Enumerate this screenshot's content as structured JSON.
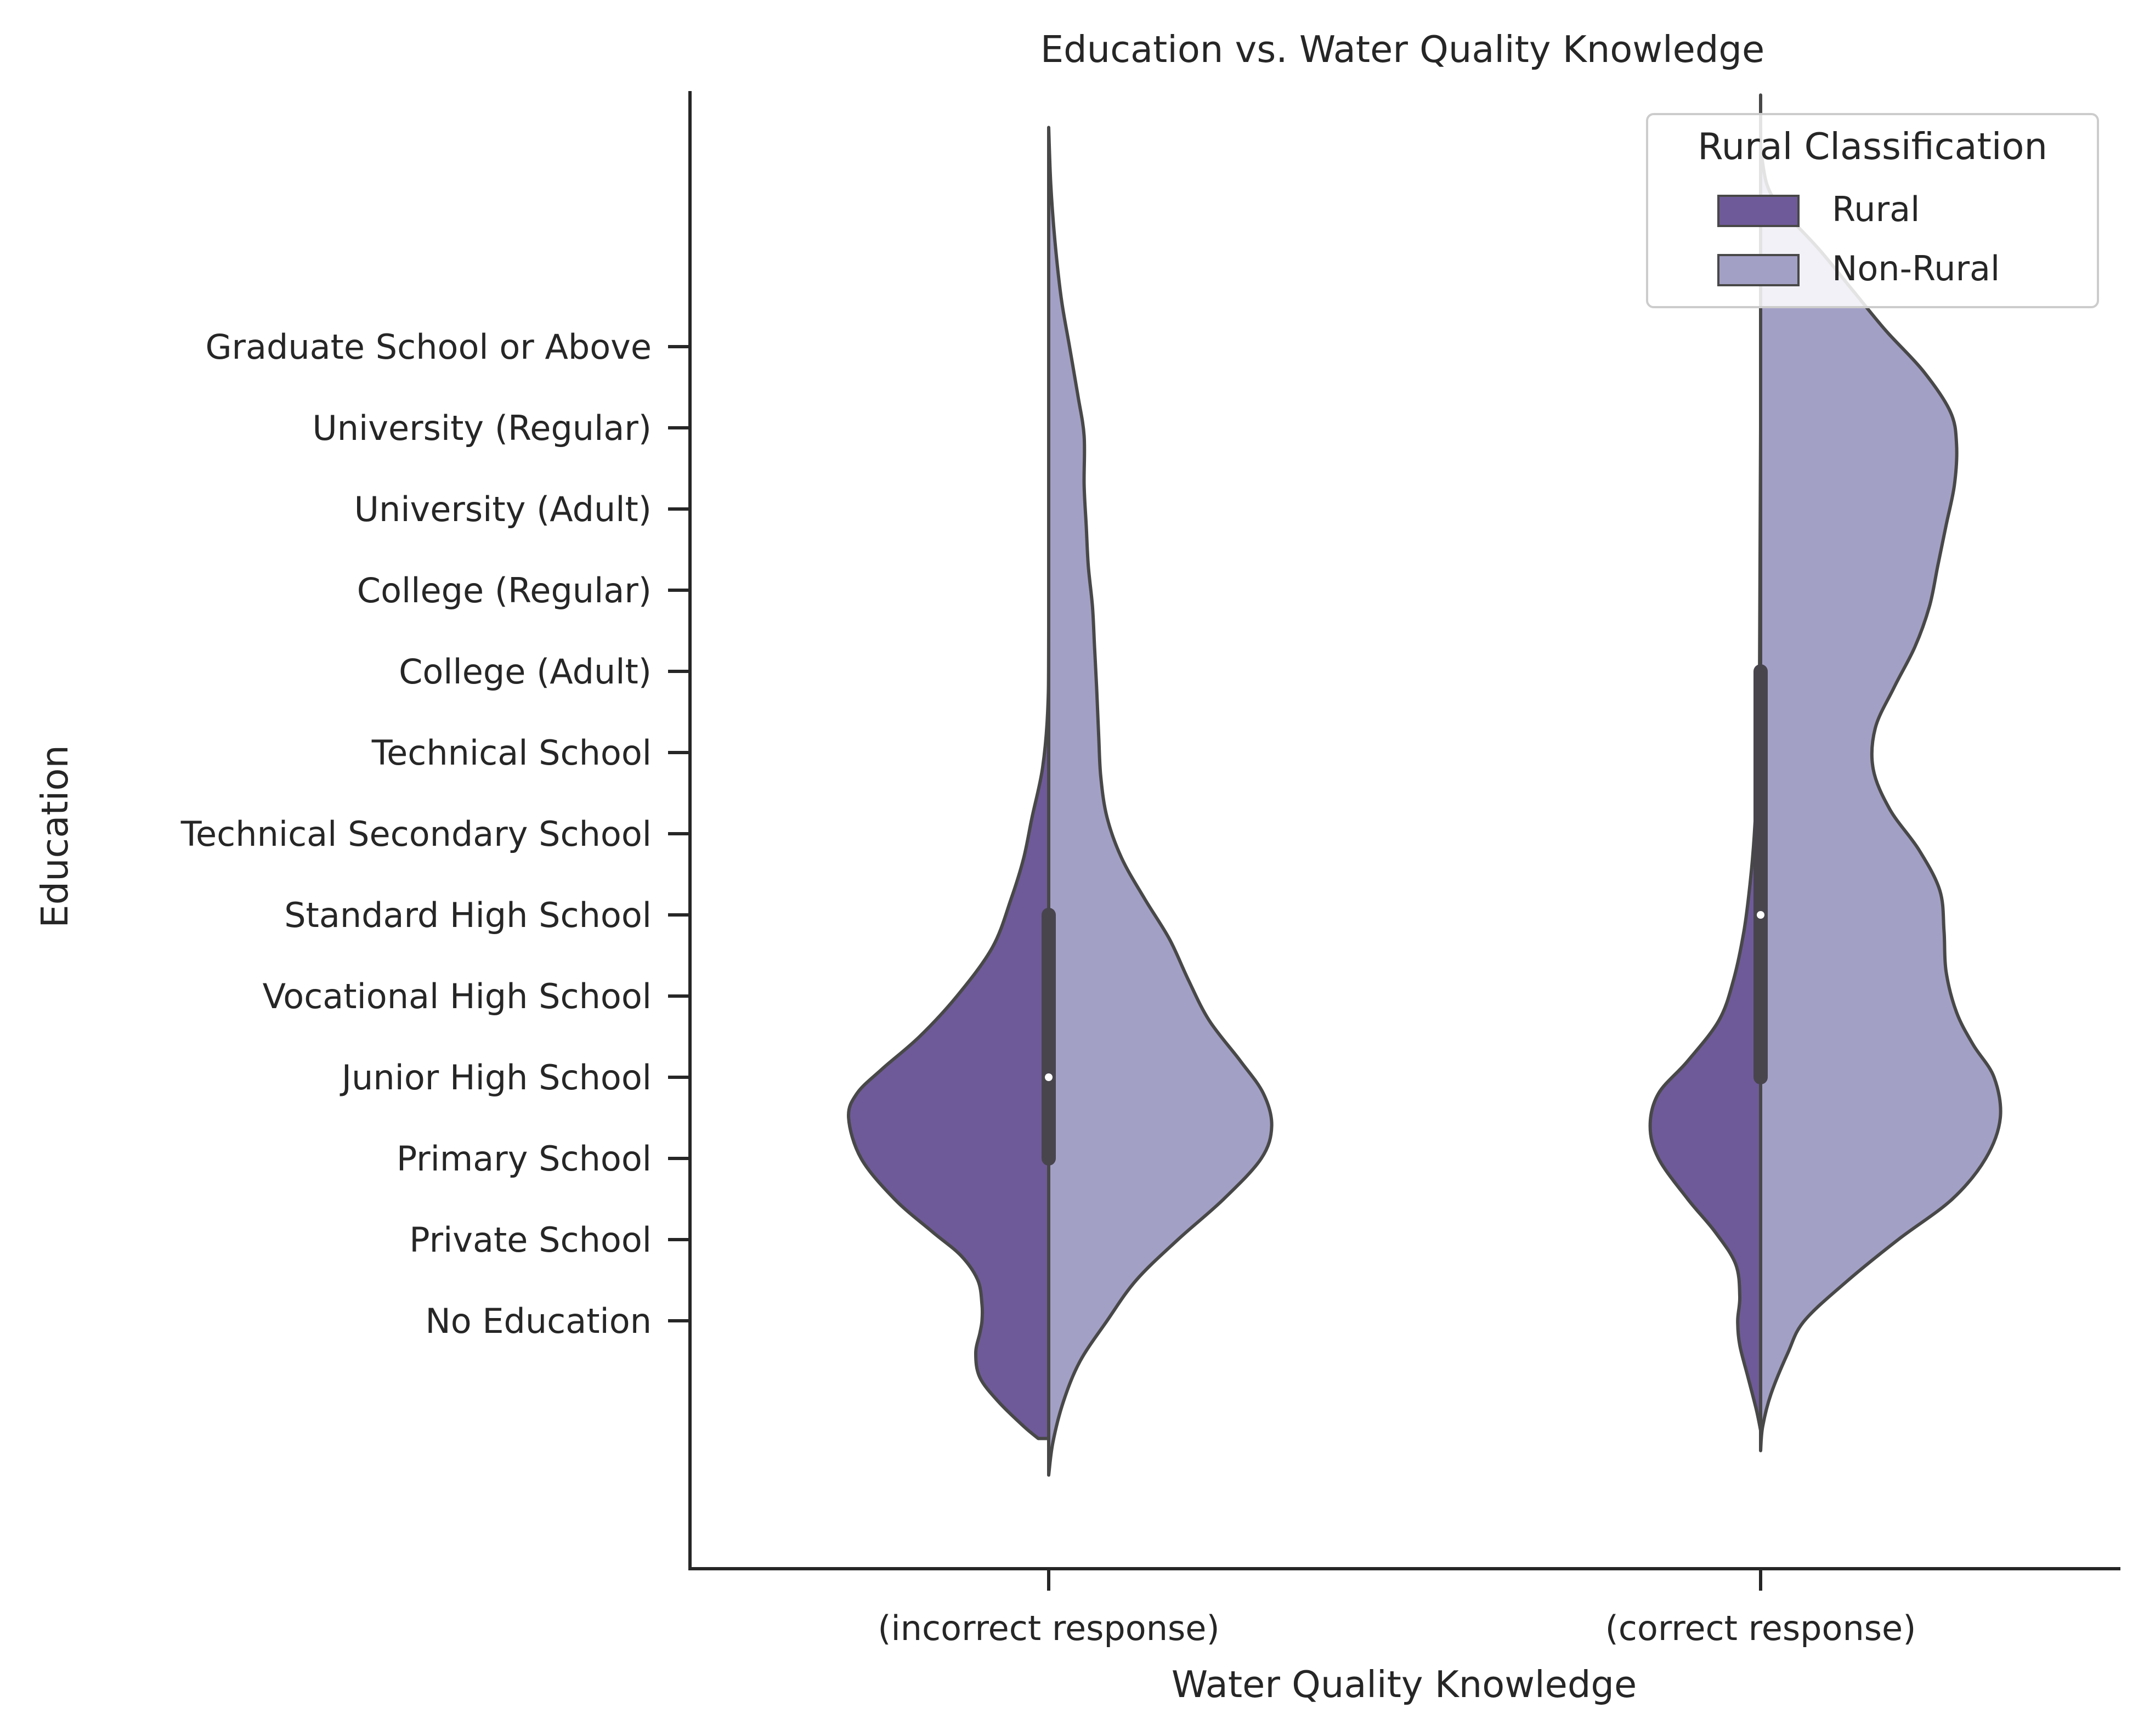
{
  "chart_data": {
    "type": "violin",
    "title": "Education vs. Water Quality Knowledge",
    "xlabel": "Water Quality Knowledge",
    "ylabel": "Education",
    "categories": [
      "(incorrect response)",
      "(correct response)"
    ],
    "y_levels": [
      "No Education",
      "Private School",
      "Primary School",
      "Junior High School",
      "Vocational High School",
      "Standard High School",
      "Technical Secondary School",
      "Technical School",
      "College (Adult)",
      "College (Regular)",
      "University (Adult)",
      "University (Regular)",
      "Graduate School or Above"
    ],
    "ylim": [
      -1.6,
      15.4
    ],
    "legend": {
      "title": "Rural Classification",
      "placement": "top-right"
    },
    "grid": false,
    "split": true,
    "series": [
      {
        "name": "Rural",
        "color": "#6e5a99",
        "side": "left",
        "violins": [
          {
            "category": "(incorrect response)",
            "extent": [
              -1.45,
              11.6
            ],
            "density_profile": [
              [
                -1.45,
                0.05
              ],
              [
                -1.3,
                0.12
              ],
              [
                -1.0,
                0.24
              ],
              [
                -0.7,
                0.33
              ],
              [
                -0.4,
                0.35
              ],
              [
                -0.15,
                0.33
              ],
              [
                0.0,
                0.32
              ],
              [
                0.2,
                0.32
              ],
              [
                0.5,
                0.34
              ],
              [
                0.8,
                0.42
              ],
              [
                1.1,
                0.56
              ],
              [
                1.5,
                0.74
              ],
              [
                2.0,
                0.9
              ],
              [
                2.5,
                0.96
              ],
              [
                2.8,
                0.92
              ],
              [
                3.1,
                0.8
              ],
              [
                3.5,
                0.62
              ],
              [
                4.0,
                0.44
              ],
              [
                4.6,
                0.27
              ],
              [
                5.2,
                0.18
              ],
              [
                5.7,
                0.12
              ],
              [
                6.2,
                0.08
              ],
              [
                6.8,
                0.03
              ],
              [
                7.5,
                0.005
              ],
              [
                8.5,
                0.0
              ],
              [
                11.6,
                0.0
              ]
            ]
          },
          {
            "category": "(correct response)",
            "extent": [
              -1.35,
              15.1
            ],
            "density_profile": [
              [
                -1.35,
                0.0
              ],
              [
                -1.1,
                0.02
              ],
              [
                -0.7,
                0.06
              ],
              [
                -0.3,
                0.1
              ],
              [
                0.0,
                0.11
              ],
              [
                0.3,
                0.1
              ],
              [
                0.7,
                0.12
              ],
              [
                1.1,
                0.22
              ],
              [
                1.5,
                0.35
              ],
              [
                2.0,
                0.49
              ],
              [
                2.4,
                0.53
              ],
              [
                2.8,
                0.49
              ],
              [
                3.2,
                0.35
              ],
              [
                3.7,
                0.2
              ],
              [
                4.2,
                0.13
              ],
              [
                4.8,
                0.08
              ],
              [
                5.4,
                0.05
              ],
              [
                6.0,
                0.03
              ],
              [
                7.0,
                0.01
              ],
              [
                8.0,
                0.005
              ],
              [
                11.0,
                0.0
              ],
              [
                15.1,
                0.0
              ]
            ]
          }
        ]
      },
      {
        "name": "Non-Rural",
        "color": "#a3a0c6",
        "side": "right",
        "violins": [
          {
            "category": "(incorrect response)",
            "extent": [
              -1.9,
              14.7
            ],
            "density_profile": [
              [
                -1.9,
                0.0
              ],
              [
                -1.5,
                0.02
              ],
              [
                -1.0,
                0.07
              ],
              [
                -0.5,
                0.15
              ],
              [
                0.0,
                0.28
              ],
              [
                0.5,
                0.42
              ],
              [
                1.0,
                0.62
              ],
              [
                1.5,
                0.84
              ],
              [
                2.0,
                1.02
              ],
              [
                2.4,
                1.07
              ],
              [
                2.8,
                1.03
              ],
              [
                3.2,
                0.92
              ],
              [
                3.7,
                0.77
              ],
              [
                4.2,
                0.67
              ],
              [
                4.7,
                0.58
              ],
              [
                5.2,
                0.46
              ],
              [
                5.7,
                0.35
              ],
              [
                6.2,
                0.28
              ],
              [
                6.7,
                0.25
              ],
              [
                7.2,
                0.24
              ],
              [
                7.8,
                0.23
              ],
              [
                8.3,
                0.22
              ],
              [
                8.8,
                0.21
              ],
              [
                9.3,
                0.19
              ],
              [
                9.8,
                0.18
              ],
              [
                10.3,
                0.17
              ],
              [
                10.9,
                0.17
              ],
              [
                11.4,
                0.14
              ],
              [
                12.0,
                0.1
              ],
              [
                12.6,
                0.06
              ],
              [
                13.3,
                0.03
              ],
              [
                14.0,
                0.01
              ],
              [
                14.7,
                0.0
              ]
            ]
          },
          {
            "category": "(correct response)",
            "extent": [
              -1.6,
              14.45
            ],
            "density_profile": [
              [
                -1.6,
                0.0
              ],
              [
                -1.3,
                0.01
              ],
              [
                -0.9,
                0.05
              ],
              [
                -0.4,
                0.13
              ],
              [
                0.0,
                0.21
              ],
              [
                0.5,
                0.42
              ],
              [
                1.0,
                0.66
              ],
              [
                1.5,
                0.92
              ],
              [
                2.0,
                1.08
              ],
              [
                2.5,
                1.15
              ],
              [
                3.0,
                1.12
              ],
              [
                3.4,
                1.02
              ],
              [
                3.8,
                0.94
              ],
              [
                4.3,
                0.89
              ],
              [
                4.8,
                0.88
              ],
              [
                5.3,
                0.86
              ],
              [
                5.8,
                0.76
              ],
              [
                6.3,
                0.62
              ],
              [
                6.8,
                0.54
              ],
              [
                7.3,
                0.55
              ],
              [
                7.8,
                0.64
              ],
              [
                8.3,
                0.74
              ],
              [
                8.8,
                0.81
              ],
              [
                9.3,
                0.85
              ],
              [
                9.8,
                0.89
              ],
              [
                10.3,
                0.93
              ],
              [
                10.8,
                0.94
              ],
              [
                11.2,
                0.91
              ],
              [
                11.7,
                0.78
              ],
              [
                12.2,
                0.6
              ],
              [
                12.7,
                0.44
              ],
              [
                13.2,
                0.28
              ],
              [
                13.7,
                0.1
              ],
              [
                14.0,
                0.03
              ],
              [
                14.45,
                0.0
              ]
            ]
          }
        ]
      }
    ],
    "inner_box": [
      {
        "category": "(incorrect response)",
        "q1": 2.0,
        "median": 3.0,
        "q3": 5.0
      },
      {
        "category": "(correct response)",
        "q1": 3.0,
        "median": 5.0,
        "q3": 8.0
      }
    ]
  }
}
